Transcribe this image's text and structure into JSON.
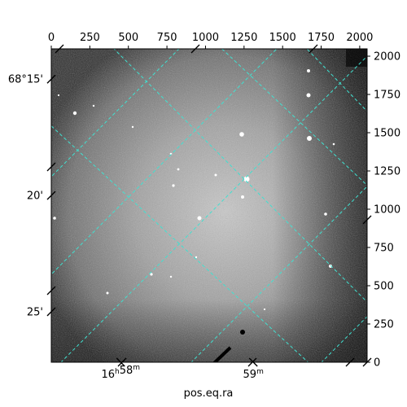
{
  "chart_data": {
    "type": "image",
    "xlabel": "pos.eq.ra",
    "ylabel": "",
    "pixel_axes": {
      "x_ticks": [
        0,
        250,
        500,
        750,
        1000,
        1250,
        1500,
        1750,
        2000
      ],
      "x_range": [
        0,
        2048
      ],
      "y_ticks": [
        0,
        250,
        500,
        750,
        1000,
        1250,
        1500,
        1750,
        2000
      ],
      "y_range": [
        0,
        2048
      ]
    },
    "world_axes": {
      "ra_ticks": [
        {
          "label_main": "16",
          "sup1": "h",
          "label_mid": "58",
          "sup2": "m",
          "px": 450
        },
        {
          "label_main": "59",
          "sup1": "",
          "label_mid": "",
          "sup2": "m",
          "px": 1310
        }
      ],
      "dec_ticks": [
        {
          "label": "68°15'",
          "py": 1850
        },
        {
          "label": "20'",
          "py": 1090
        },
        {
          "label": "25'",
          "py": 330
        }
      ]
    },
    "grid": true,
    "grid_color": "#40e0d0",
    "colormap": "gray",
    "axis_color": "#000000",
    "background": "#ffffff"
  }
}
